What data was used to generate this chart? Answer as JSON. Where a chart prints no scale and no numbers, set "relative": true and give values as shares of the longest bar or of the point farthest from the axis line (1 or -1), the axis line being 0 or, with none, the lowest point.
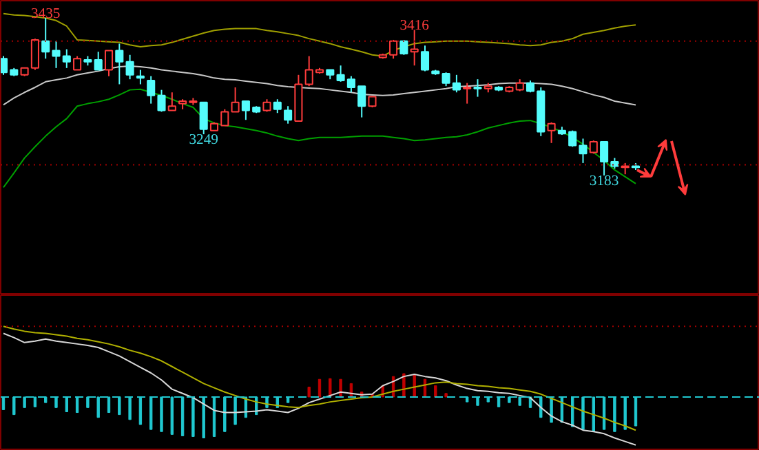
{
  "chart_data": [
    {
      "type": "candlestick",
      "categories": [
        null,
        null,
        null,
        null,
        null,
        null,
        null,
        null,
        null,
        null,
        null,
        null,
        null,
        null,
        null,
        null,
        null,
        null,
        null,
        null,
        null,
        null,
        null,
        null,
        null,
        null,
        null,
        null,
        null,
        null,
        null,
        null,
        null,
        null,
        null,
        null,
        null,
        null,
        null,
        null,
        null,
        null,
        null,
        null,
        null,
        null,
        null,
        null,
        null,
        null,
        null,
        null,
        null,
        null,
        null,
        null,
        null,
        null,
        null,
        null,
        null
      ],
      "ohlc": [
        [
          3370,
          3374,
          3344,
          3348
        ],
        [
          3352,
          3355,
          3342,
          3344
        ],
        [
          3344,
          3355,
          3342,
          3355
        ],
        [
          3355,
          3402,
          3352,
          3400
        ],
        [
          3398,
          3435,
          3370,
          3381
        ],
        [
          3383,
          3398,
          3355,
          3374
        ],
        [
          3374,
          3385,
          3355,
          3365
        ],
        [
          3352,
          3374,
          3352,
          3370
        ],
        [
          3368,
          3374,
          3359,
          3365
        ],
        [
          3368,
          3381,
          3352,
          3352
        ],
        [
          3352,
          3383,
          3342,
          3383
        ],
        [
          3383,
          3394,
          3329,
          3365
        ],
        [
          3365,
          3376,
          3337,
          3344
        ],
        [
          3342,
          3352,
          3329,
          3339
        ],
        [
          3335,
          3342,
          3298,
          3311
        ],
        [
          3311,
          3320,
          3285,
          3287
        ],
        [
          3287,
          3316,
          3287,
          3294
        ],
        [
          3298,
          3305,
          3289,
          3302
        ],
        [
          3300,
          3307,
          3296,
          3302
        ],
        [
          3300,
          3300,
          3249,
          3257
        ],
        [
          3255,
          3268,
          3255,
          3266
        ],
        [
          3263,
          3289,
          3263,
          3285
        ],
        [
          3285,
          3324,
          3285,
          3300
        ],
        [
          3302,
          3302,
          3272,
          3287
        ],
        [
          3292,
          3294,
          3283,
          3285
        ],
        [
          3287,
          3305,
          3285,
          3300
        ],
        [
          3300,
          3305,
          3283,
          3289
        ],
        [
          3287,
          3294,
          3266,
          3272
        ],
        [
          3270,
          3344,
          3270,
          3329
        ],
        [
          3329,
          3374,
          3326,
          3352
        ],
        [
          3348,
          3355,
          3346,
          3352
        ],
        [
          3352,
          3352,
          3337,
          3344
        ],
        [
          3344,
          3359,
          3333,
          3335
        ],
        [
          3337,
          3342,
          3316,
          3324
        ],
        [
          3326,
          3326,
          3276,
          3294
        ],
        [
          3294,
          3309,
          3292,
          3309
        ],
        [
          3372,
          3378,
          3370,
          3376
        ],
        [
          3376,
          3400,
          3370,
          3398
        ],
        [
          3398,
          3400,
          3376,
          3378
        ],
        [
          3381,
          3416,
          3359,
          3385
        ],
        [
          3381,
          3391,
          3350,
          3352
        ],
        [
          3350,
          3352,
          3344,
          3346
        ],
        [
          3346,
          3348,
          3326,
          3331
        ],
        [
          3331,
          3344,
          3316,
          3320
        ],
        [
          3322,
          3331,
          3298,
          3324
        ],
        [
          3324,
          3337,
          3309,
          3322
        ],
        [
          3322,
          3331,
          3316,
          3326
        ],
        [
          3324,
          3326,
          3318,
          3320
        ],
        [
          3318,
          3326,
          3316,
          3324
        ],
        [
          3320,
          3337,
          3318,
          3331
        ],
        [
          3331,
          3335,
          3316,
          3318
        ],
        [
          3318,
          3324,
          3246,
          3253
        ],
        [
          3255,
          3268,
          3235,
          3266
        ],
        [
          3255,
          3261,
          3248,
          3250
        ],
        [
          3253,
          3255,
          3229,
          3231
        ],
        [
          3231,
          3242,
          3203,
          3218
        ],
        [
          3220,
          3239,
          3218,
          3237
        ],
        [
          3237,
          3237,
          3183,
          3205
        ],
        [
          3205,
          3211,
          3194,
          3198
        ],
        [
          3196,
          3203,
          3185,
          3198
        ],
        [
          3198,
          3203,
          3192,
          3196
        ]
      ],
      "colors": [
        "#54fcfc",
        "#54fcfc",
        "#ff3c3c",
        "#ff3c3c",
        "#54fcfc",
        "#54fcfc",
        "#54fcfc",
        "#ff3c3c",
        "#54fcfc",
        "#54fcfc",
        "#ff3c3c",
        "#54fcfc",
        "#54fcfc",
        "#54fcfc",
        "#54fcfc",
        "#54fcfc",
        "#ff3c3c",
        "#ff3c3c",
        "#ff3c3c",
        "#54fcfc",
        "#ff3c3c",
        "#ff3c3c",
        "#ff3c3c",
        "#54fcfc",
        "#54fcfc",
        "#ff3c3c",
        "#54fcfc",
        "#54fcfc",
        "#ff3c3c",
        "#ff3c3c",
        "#ff3c3c",
        "#54fcfc",
        "#54fcfc",
        "#54fcfc",
        "#54fcfc",
        "#ff3c3c",
        "#ff3c3c",
        "#ff3c3c",
        "#54fcfc",
        "#ff3c3c",
        "#54fcfc",
        "#54fcfc",
        "#54fcfc",
        "#54fcfc",
        "#ff3c3c",
        "#54fcfc",
        "#ff3c3c",
        "#54fcfc",
        "#ff3c3c",
        "#ff3c3c",
        "#54fcfc",
        "#54fcfc",
        "#ff3c3c",
        "#54fcfc",
        "#54fcfc",
        "#54fcfc",
        "#ff3c3c",
        "#54fcfc",
        "#54fcfc",
        "#ff3c3c",
        "#54fcfc"
      ],
      "series": [
        {
          "type": "line",
          "color": "#a0a000",
          "values": [
            3442,
            3440,
            3439,
            3437,
            3435,
            3431,
            3422,
            3400,
            3399,
            3398,
            3397,
            3396,
            3392,
            3389,
            3391,
            3392,
            3396,
            3401,
            3406,
            3411,
            3415,
            3417,
            3418,
            3418,
            3418,
            3415,
            3413,
            3410,
            3407,
            3402,
            3398,
            3394,
            3389,
            3385,
            3381,
            3376,
            3374,
            3383,
            3389,
            3394,
            3396,
            3397,
            3398,
            3398,
            3398,
            3397,
            3396,
            3395,
            3394,
            3392,
            3391,
            3392,
            3396,
            3398,
            3402,
            3409,
            3412,
            3415,
            3419,
            3422,
            3424
          ]
        },
        {
          "type": "line",
          "color": "#c8c8c8",
          "values": [
            3296,
            3307,
            3316,
            3324,
            3333,
            3336,
            3339,
            3344,
            3347,
            3350,
            3354,
            3357,
            3358,
            3357,
            3355,
            3352,
            3350,
            3348,
            3346,
            3343,
            3339,
            3337,
            3336,
            3334,
            3332,
            3330,
            3327,
            3325,
            3324,
            3323,
            3322,
            3320,
            3318,
            3316,
            3313,
            3312,
            3311,
            3312,
            3314,
            3316,
            3318,
            3320,
            3322,
            3325,
            3326,
            3327,
            3328,
            3330,
            3331,
            3331,
            3331,
            3330,
            3329,
            3326,
            3322,
            3317,
            3312,
            3308,
            3302,
            3299,
            3296
          ]
        },
        {
          "type": "line",
          "color": "#00a000",
          "values": [
            3164,
            3187,
            3211,
            3229,
            3246,
            3261,
            3274,
            3294,
            3298,
            3301,
            3305,
            3312,
            3320,
            3321,
            3316,
            3311,
            3305,
            3298,
            3292,
            3274,
            3267,
            3263,
            3261,
            3258,
            3255,
            3251,
            3246,
            3242,
            3239,
            3242,
            3244,
            3244,
            3244,
            3245,
            3246,
            3246,
            3246,
            3244,
            3242,
            3239,
            3240,
            3242,
            3244,
            3245,
            3248,
            3253,
            3259,
            3263,
            3267,
            3270,
            3271,
            3266,
            3260,
            3253,
            3244,
            3233,
            3220,
            3207,
            3192,
            3181,
            3170
          ]
        }
      ],
      "annotations": [
        {
          "text": "3435",
          "y": 3435
        },
        {
          "text": "3416",
          "y": 3416
        },
        {
          "text": "3249",
          "y": 3249
        },
        {
          "text": "3183",
          "y": 3183
        }
      ],
      "ref_lines": [
        {
          "axis": "y",
          "value": 3398,
          "color": "#a00000",
          "line_style": "dotted"
        },
        {
          "axis": "y",
          "value": 3200,
          "color": "#a00000",
          "line_style": "dotted"
        }
      ]
    },
    {
      "type": "bar",
      "relative": true,
      "categories": [
        null,
        null,
        null,
        null,
        null,
        null,
        null,
        null,
        null,
        null,
        null,
        null,
        null,
        null,
        null,
        null,
        null,
        null,
        null,
        null,
        null,
        null,
        null,
        null,
        null,
        null,
        null,
        null,
        null,
        null,
        null,
        null,
        null,
        null,
        null,
        null,
        null,
        null,
        null,
        null,
        null,
        null,
        null,
        null,
        null,
        null,
        null,
        null,
        null,
        null,
        null,
        null,
        null,
        null,
        null,
        null,
        null,
        null,
        null,
        null,
        null
      ],
      "series": [
        {
          "type": "bar",
          "values": [
            -0.18,
            -0.25,
            -0.15,
            -0.14,
            -0.08,
            -0.15,
            -0.21,
            -0.22,
            -0.15,
            -0.29,
            -0.22,
            -0.25,
            -0.32,
            -0.39,
            -0.46,
            -0.49,
            -0.53,
            -0.55,
            -0.56,
            -0.58,
            -0.56,
            -0.49,
            -0.39,
            -0.29,
            -0.25,
            -0.15,
            -0.15,
            -0.08,
            null,
            0.14,
            0.25,
            0.26,
            0.25,
            0.19,
            0.07,
            0.04,
            0.16,
            0.29,
            0.33,
            0.32,
            0.25,
            0.16,
            0.05,
            null,
            -0.07,
            -0.12,
            -0.07,
            -0.14,
            -0.08,
            -0.12,
            -0.15,
            -0.29,
            -0.36,
            -0.36,
            -0.42,
            -0.46,
            -0.49,
            -0.46,
            -0.49,
            -0.46,
            -0.41
          ],
          "colors": [
            "#20c8d0",
            "#20c8d0",
            "#20c8d0",
            "#20c8d0",
            "#20c8d0",
            "#20c8d0",
            "#20c8d0",
            "#20c8d0",
            "#20c8d0",
            "#20c8d0",
            "#20c8d0",
            "#20c8d0",
            "#20c8d0",
            "#20c8d0",
            "#20c8d0",
            "#20c8d0",
            "#20c8d0",
            "#20c8d0",
            "#20c8d0",
            "#20c8d0",
            "#20c8d0",
            "#20c8d0",
            "#20c8d0",
            "#20c8d0",
            "#20c8d0",
            "#20c8d0",
            "#20c8d0",
            "#20c8d0",
            "#20c8d0",
            "#c00000",
            "#c00000",
            "#c00000",
            "#c00000",
            "#c00000",
            "#c00000",
            "#c00000",
            "#c00000",
            "#c00000",
            "#c00000",
            "#c00000",
            "#c00000",
            "#c00000",
            "#c00000",
            "#20c8d0",
            "#20c8d0",
            "#20c8d0",
            "#20c8d0",
            "#20c8d0",
            "#20c8d0",
            "#20c8d0",
            "#20c8d0",
            "#20c8d0",
            "#20c8d0",
            "#20c8d0",
            "#20c8d0",
            "#20c8d0",
            "#20c8d0",
            "#20c8d0",
            "#20c8d0",
            "#20c8d0",
            "#20c8d0"
          ]
        },
        {
          "type": "line",
          "color": "#d8d8d8",
          "values": [
            0.9,
            0.84,
            0.77,
            0.79,
            0.82,
            0.79,
            0.77,
            0.75,
            0.73,
            0.7,
            0.64,
            0.58,
            0.5,
            0.42,
            0.34,
            0.24,
            0.11,
            0.05,
            -0.01,
            -0.1,
            -0.19,
            -0.22,
            -0.22,
            -0.21,
            -0.2,
            -0.18,
            -0.2,
            -0.22,
            -0.16,
            -0.08,
            -0.03,
            0.02,
            0.07,
            0.05,
            0.03,
            0.04,
            0.16,
            0.22,
            0.29,
            0.32,
            0.29,
            0.27,
            0.23,
            0.17,
            0.12,
            0.09,
            0.08,
            0.06,
            0.05,
            0.02,
            -0.01,
            -0.15,
            -0.27,
            -0.35,
            -0.4,
            -0.47,
            -0.49,
            -0.52,
            -0.58,
            -0.63,
            -0.68
          ]
        },
        {
          "type": "line",
          "color": "#b0b000",
          "values": [
            1,
            0.96,
            0.93,
            0.91,
            0.9,
            0.88,
            0.86,
            0.83,
            0.81,
            0.78,
            0.75,
            0.71,
            0.66,
            0.62,
            0.57,
            0.51,
            0.43,
            0.35,
            0.27,
            0.19,
            0.13,
            0.07,
            0.02,
            -0.03,
            -0.07,
            -0.1,
            -0.12,
            -0.14,
            -0.15,
            -0.12,
            -0.1,
            -0.07,
            -0.05,
            -0.03,
            -0.01,
            0,
            0.04,
            0.08,
            0.11,
            0.14,
            0.17,
            0.2,
            0.21,
            0.19,
            0.18,
            0.16,
            0.15,
            0.13,
            0.12,
            0.1,
            0.08,
            0.04,
            -0.02,
            -0.08,
            -0.14,
            -0.2,
            -0.25,
            -0.3,
            -0.36,
            -0.41,
            -0.47
          ]
        }
      ],
      "ref_lines": [
        {
          "axis": "y",
          "value": 0,
          "color": "#20c8d0",
          "line_style": "dashed"
        },
        {
          "axis": "y",
          "value": 1,
          "color": "#a00000",
          "line_style": "dotted"
        }
      ]
    }
  ]
}
